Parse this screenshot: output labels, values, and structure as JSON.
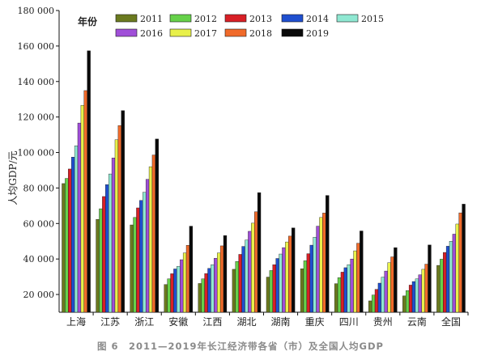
{
  "chart_data": {
    "type": "bar",
    "caption": "图 6　2011—2019年长江经济带各省（市）及全国人均GDP",
    "ylabel": "人均GDP/元",
    "legend_title": "年份",
    "ylim": [
      10000,
      180000
    ],
    "y_ticks": [
      20000,
      40000,
      60000,
      80000,
      100000,
      120000,
      140000,
      160000,
      180000
    ],
    "y_tick_labels": [
      "20 000",
      "40 000",
      "60 000",
      "80 000",
      "100 000",
      "120 000",
      "140 000",
      "160 000",
      "180 000"
    ],
    "categories": [
      "上海",
      "江苏",
      "浙江",
      "安徽",
      "江西",
      "湖北",
      "湖南",
      "重庆",
      "四川",
      "贵州",
      "云南",
      "全国"
    ],
    "series": [
      {
        "name": "2011",
        "color": "#6b7a1f",
        "values": [
          82500,
          62300,
          59200,
          25600,
          26200,
          34200,
          29800,
          34500,
          26100,
          16400,
          19200,
          36400
        ]
      },
      {
        "name": "2012",
        "color": "#66d14a",
        "values": [
          85400,
          68300,
          63400,
          28800,
          28800,
          38600,
          33500,
          39000,
          29500,
          19700,
          22200,
          39900
        ]
      },
      {
        "name": "2013",
        "color": "#d81f26",
        "values": [
          90700,
          75200,
          68800,
          31700,
          31800,
          42600,
          36800,
          43000,
          32600,
          22900,
          25300,
          43700
        ]
      },
      {
        "name": "2014",
        "color": "#1f4fcf",
        "values": [
          97400,
          81900,
          73000,
          34400,
          34700,
          47100,
          40300,
          47800,
          35100,
          26400,
          27300,
          47200
        ]
      },
      {
        "name": "2015",
        "color": "#8fe8d2",
        "values": [
          103800,
          87900,
          77600,
          35900,
          36800,
          50700,
          42800,
          52300,
          36800,
          29800,
          28800,
          50000
        ]
      },
      {
        "name": "2016",
        "color": "#a04fd8",
        "values": [
          116600,
          96900,
          84900,
          39600,
          40400,
          55600,
          46400,
          58500,
          40000,
          33200,
          31100,
          54000
        ]
      },
      {
        "name": "2017",
        "color": "#e8f04a",
        "values": [
          126600,
          107200,
          92000,
          43400,
          43400,
          60200,
          49600,
          63400,
          44600,
          37900,
          34200,
          59700
        ]
      },
      {
        "name": "2018",
        "color": "#f06a2a",
        "values": [
          134900,
          115200,
          98600,
          47700,
          47400,
          66600,
          52900,
          65900,
          48900,
          41200,
          37100,
          66000
        ]
      },
      {
        "name": "2019",
        "color": "#0a0a0a",
        "values": [
          157300,
          123600,
          107600,
          58500,
          53200,
          77400,
          57500,
          75800,
          55800,
          46400,
          47900,
          70900
        ]
      }
    ],
    "legend_placement": "top-left",
    "grid": false
  }
}
